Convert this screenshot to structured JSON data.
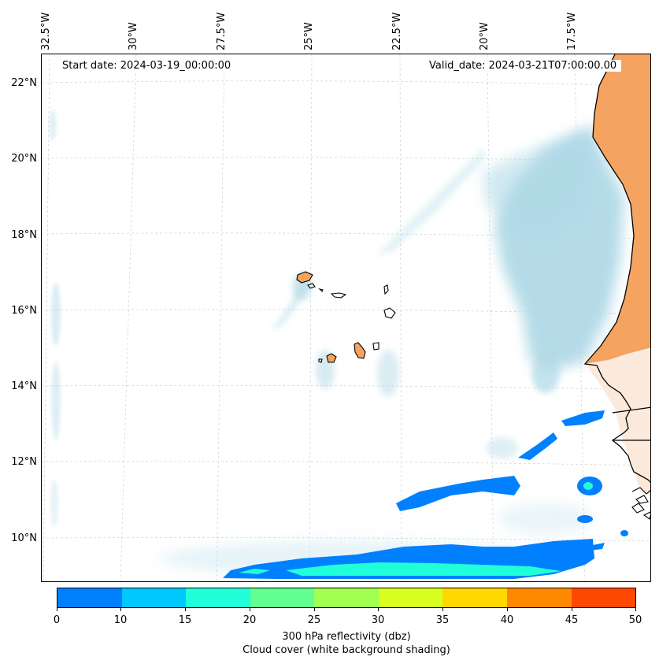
{
  "header": {
    "start_date": "Start date: 2024-03-19_00:00:00",
    "valid_date": "Valid_date: 2024-03-21T07:00:00.00"
  },
  "axes": {
    "longitude_labels": [
      "32.5°W",
      "30°W",
      "27.5°W",
      "25°W",
      "22.5°W",
      "20°W",
      "17.5°W"
    ],
    "latitude_labels": [
      "22°N",
      "20°N",
      "18°N",
      "16°N",
      "14°N",
      "12°N",
      "10°N"
    ]
  },
  "colorbar": {
    "ticks": [
      "0",
      "10",
      "15",
      "20",
      "25",
      "30",
      "35",
      "40",
      "45",
      "50"
    ],
    "colors": [
      "#0080ff",
      "#00c8ff",
      "#20ffd8",
      "#60ff90",
      "#a0ff50",
      "#d8ff20",
      "#ffd800",
      "#ff8800",
      "#ff4800"
    ],
    "label": "300 hPa reflectivity (dbz)",
    "sublabel": "Cloud cover (white background shading)"
  },
  "map_colors": {
    "land": "#f4a460",
    "cloud": "#add8e6",
    "reflectivity_low": "#0080ff",
    "reflectivity_mid": "#20ffd8"
  }
}
